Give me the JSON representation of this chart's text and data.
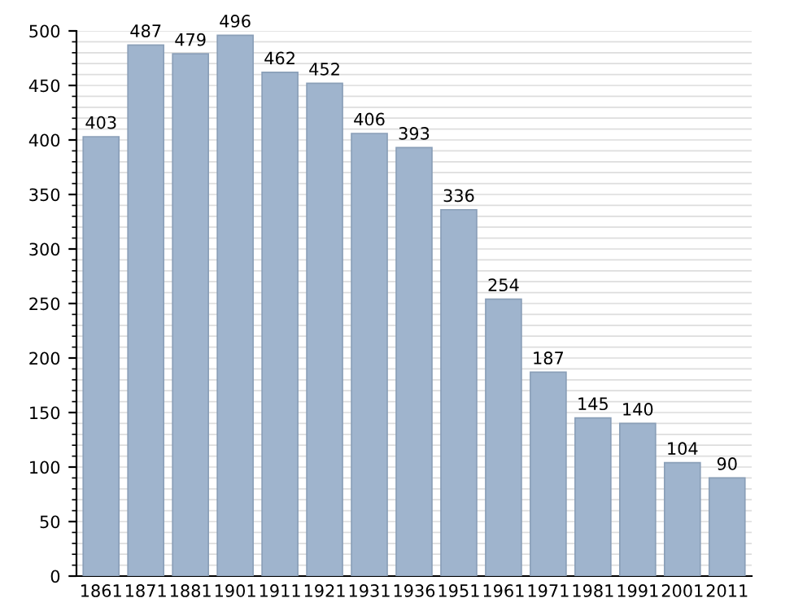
{
  "chart_data": {
    "type": "bar",
    "categories": [
      "1861",
      "1871",
      "1881",
      "1901",
      "1911",
      "1921",
      "1931",
      "1936",
      "1951",
      "1961",
      "1971",
      "1981",
      "1991",
      "2001",
      "2011"
    ],
    "values": [
      403,
      487,
      479,
      496,
      462,
      452,
      406,
      393,
      336,
      254,
      187,
      145,
      140,
      104,
      90
    ],
    "color": "#9fb4cd",
    "ylim": [
      0,
      500
    ],
    "yticks": [
      0,
      50,
      100,
      150,
      200,
      250,
      300,
      350,
      400,
      450,
      500
    ],
    "grid": "y",
    "data_labels": true
  }
}
